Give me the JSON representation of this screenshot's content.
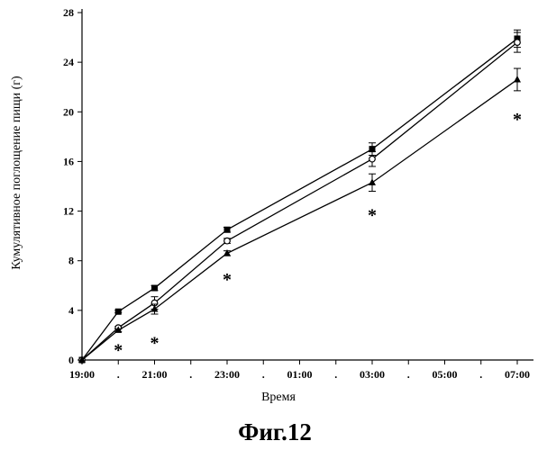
{
  "chart_data": {
    "type": "line",
    "title": "",
    "xlabel": "Время",
    "ylabel": "Кумулятивное поглощение пищи (г)",
    "x_ticks": [
      "19:00",
      ".",
      "21:00",
      ".",
      "23:00",
      ".",
      "01:00",
      ".",
      "03:00",
      ".",
      "05:00",
      ".",
      "07:00"
    ],
    "y_ticks": [
      "0",
      "4",
      "8",
      "12",
      "16",
      "20",
      "24",
      "28"
    ],
    "ylim": [
      0,
      28
    ],
    "series": [
      {
        "name": "filled-square",
        "marker": "square",
        "x_index": [
          0,
          1,
          2,
          4,
          8,
          12
        ],
        "values": [
          0,
          3.9,
          5.8,
          10.5,
          17.0,
          25.9
        ],
        "errors": [
          0,
          0.1,
          0.2,
          0.2,
          0.5,
          0.7
        ]
      },
      {
        "name": "open-circle",
        "marker": "circle",
        "x_index": [
          0,
          1,
          2,
          4,
          8,
          12
        ],
        "values": [
          0,
          2.6,
          4.6,
          9.6,
          16.2,
          25.6
        ],
        "errors": [
          0,
          0.1,
          0.5,
          0.2,
          0.6,
          0.8
        ]
      },
      {
        "name": "filled-triangle",
        "marker": "triangle",
        "x_index": [
          0,
          1,
          2,
          4,
          8,
          12
        ],
        "values": [
          0,
          2.4,
          4.1,
          8.6,
          14.3,
          22.6
        ],
        "errors": [
          0,
          0.1,
          0.4,
          0.2,
          0.7,
          0.9
        ]
      }
    ],
    "annotations": [
      {
        "text": "*",
        "x_index": 1,
        "value": 0.9
      },
      {
        "text": "*",
        "x_index": 2,
        "value": 1.5
      },
      {
        "text": "*",
        "x_index": 4,
        "value": 6.6
      },
      {
        "text": "*",
        "x_index": 8,
        "value": 11.8
      },
      {
        "text": "*",
        "x_index": 12,
        "value": 19.5
      }
    ],
    "caption": "Фиг.12",
    "colors": {
      "line": "#000000",
      "marker": "#000000",
      "background": "#ffffff"
    }
  }
}
